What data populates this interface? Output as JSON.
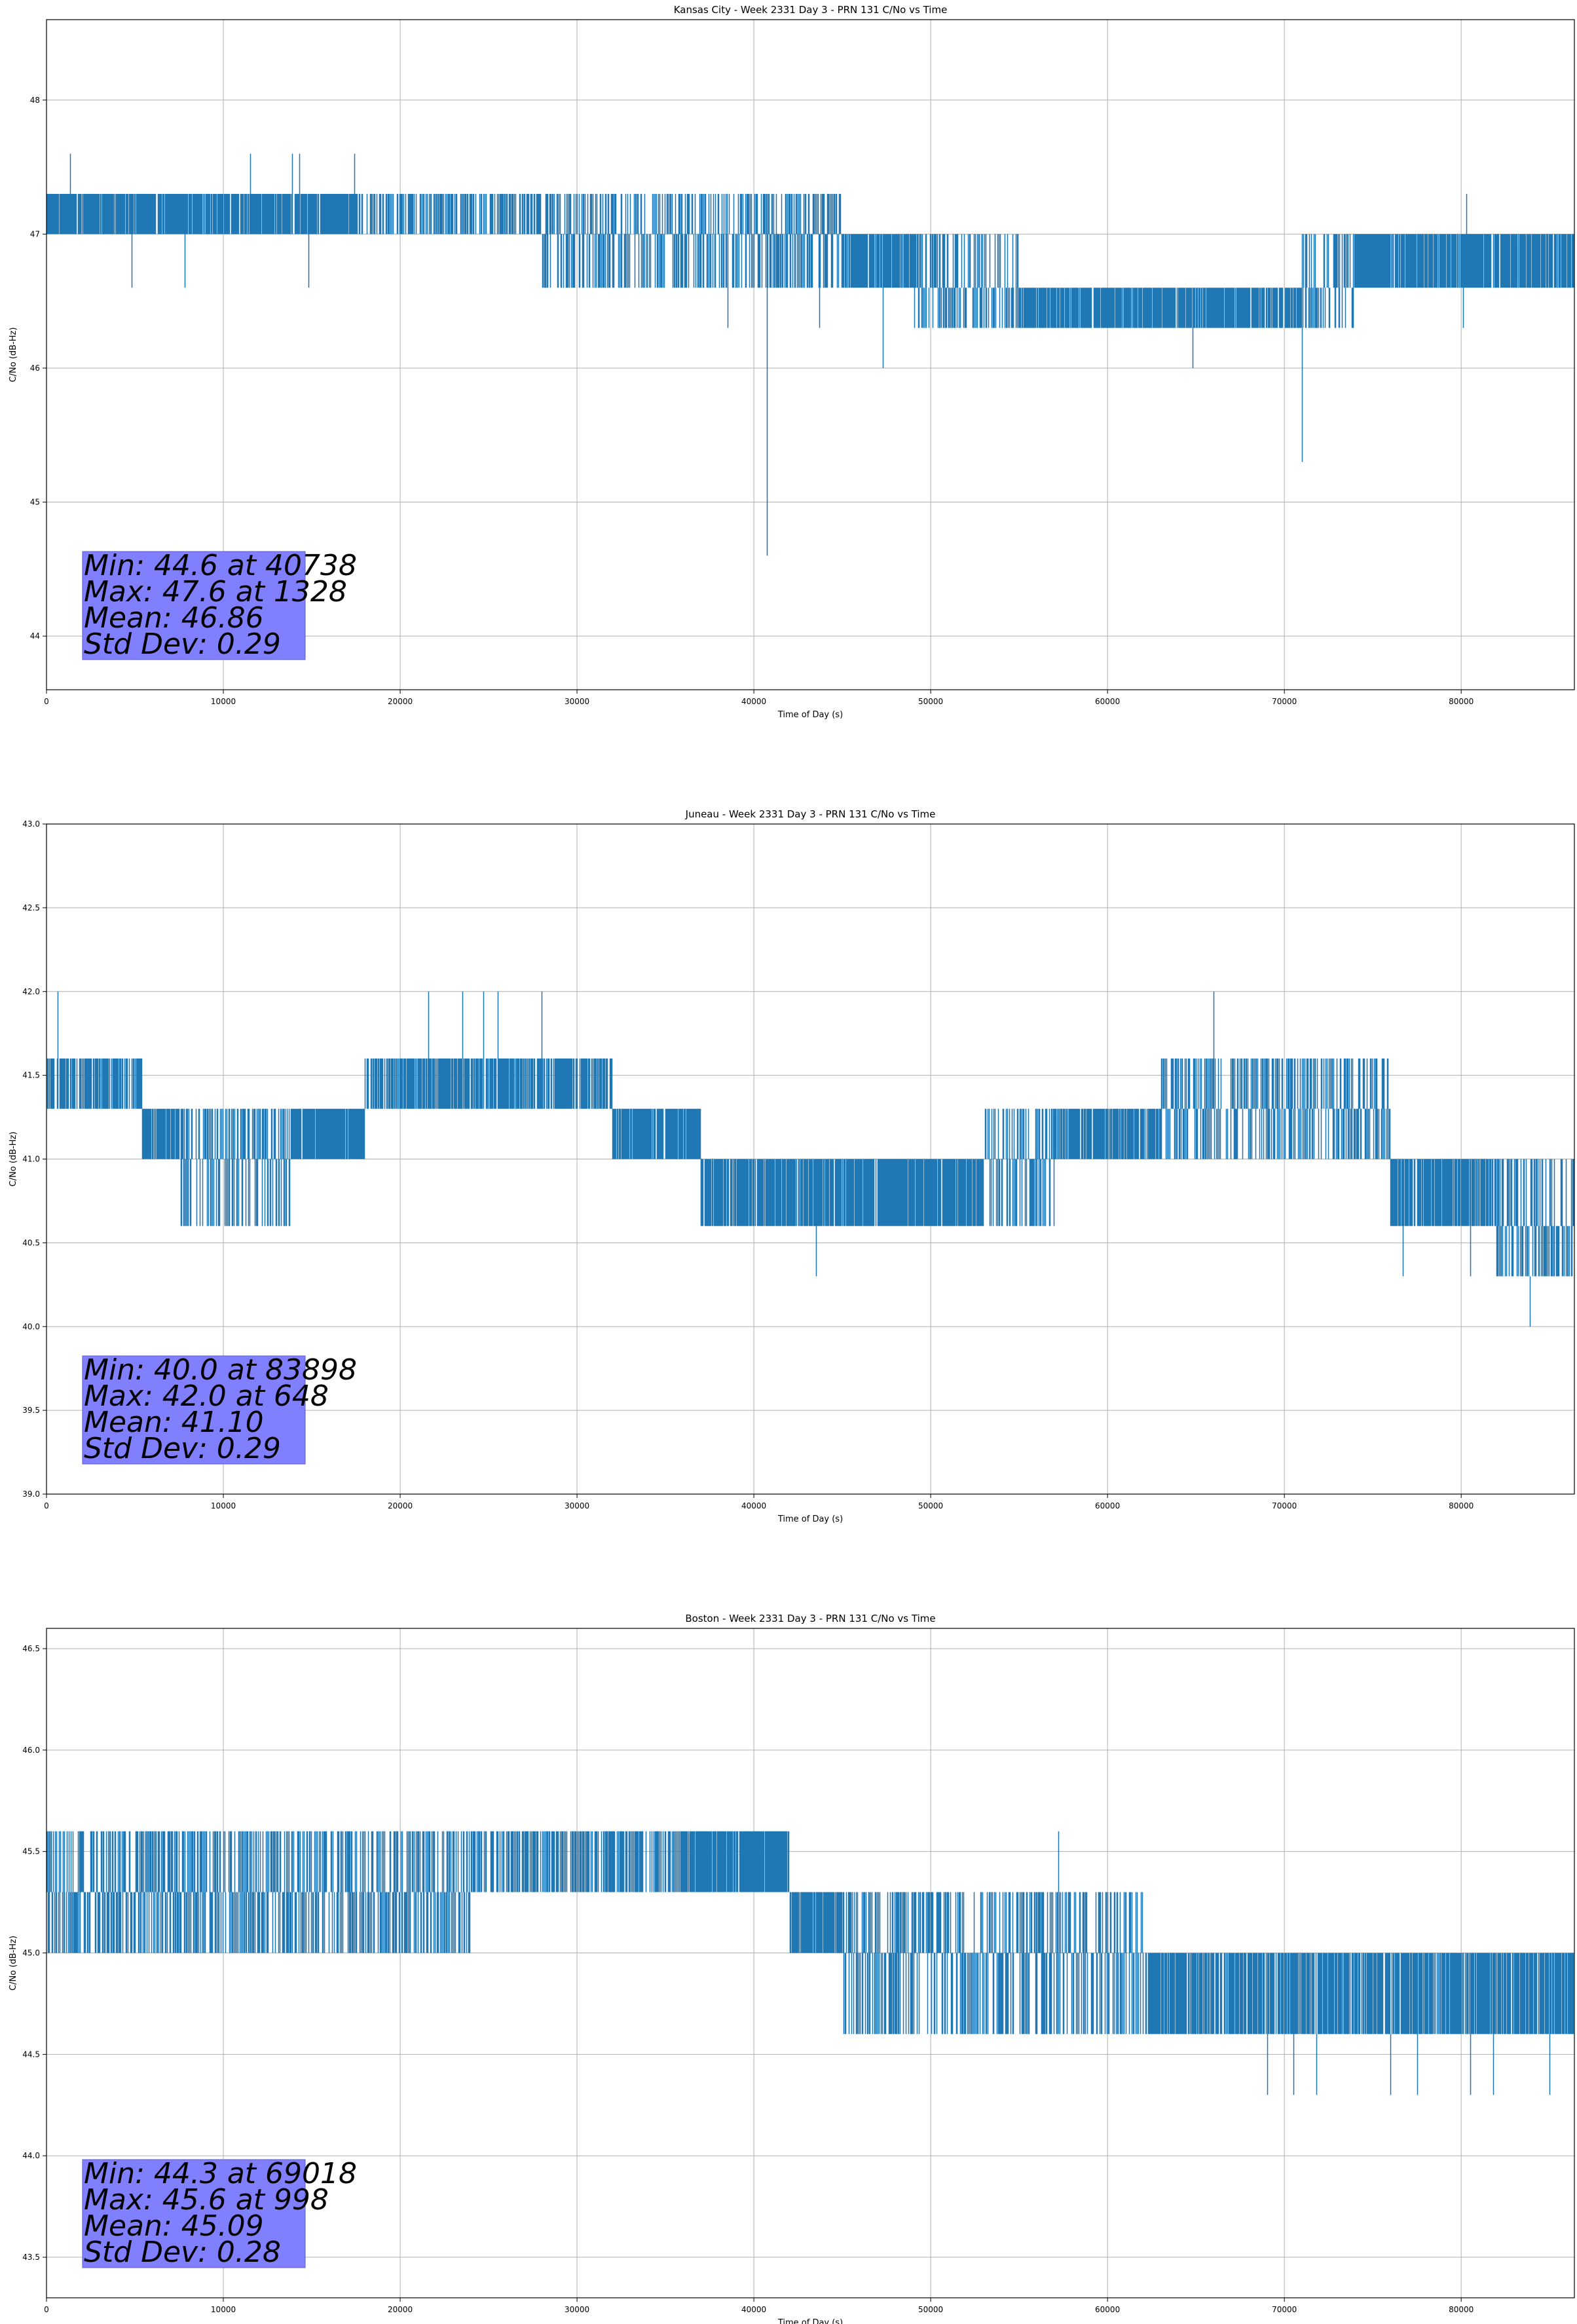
{
  "figure": {
    "background": "#ffffff"
  },
  "style": {
    "line_color": "#1f77b4",
    "grid_color": "#b0b0b0",
    "stats_box_color": "#8080ff"
  },
  "chart_data": [
    {
      "type": "line",
      "title": "Kansas City - Week 2331 Day 3 - PRN 131 C/No vs Time",
      "xlabel": "Time of Day (s)",
      "ylabel": "C/No (dB-Hz)",
      "xlim": [
        0,
        86400
      ],
      "ylim": [
        43.6,
        48.6
      ],
      "xticks": [
        0,
        10000,
        20000,
        30000,
        40000,
        50000,
        60000,
        70000,
        80000
      ],
      "yticks": [
        44,
        45,
        46,
        47,
        48
      ],
      "ytick_labels": [
        "44",
        "45",
        "46",
        "47",
        "48"
      ],
      "grid": true,
      "series": [
        {
          "color": "#1f77b4",
          "segments": [
            {
              "x0": 0,
              "x1": 17500,
              "bands": [
                47.0,
                47.3
              ],
              "density": 0.92
            },
            {
              "x0": 17500,
              "x1": 28000,
              "bands": [
                47.0,
                47.3
              ],
              "density": 0.55
            },
            {
              "x0": 28000,
              "x1": 40000,
              "bands": [
                46.6,
                47.0,
                47.3
              ],
              "density": 0.45
            },
            {
              "x0": 40000,
              "x1": 45000,
              "bands": [
                46.6,
                47.0,
                47.3
              ],
              "density": 0.7
            },
            {
              "x0": 45000,
              "x1": 49000,
              "bands": [
                46.6,
                47.0
              ],
              "density": 0.85
            },
            {
              "x0": 49000,
              "x1": 55000,
              "bands": [
                46.3,
                46.6,
                47.0
              ],
              "density": 0.55
            },
            {
              "x0": 55000,
              "x1": 71000,
              "bands": [
                46.3,
                46.6
              ],
              "density": 0.85
            },
            {
              "x0": 71000,
              "x1": 74000,
              "bands": [
                46.3,
                46.6,
                47.0
              ],
              "density": 0.5
            },
            {
              "x0": 74000,
              "x1": 86400,
              "bands": [
                46.6,
                47.0
              ],
              "density": 0.85
            }
          ],
          "spikes": [
            [
              1328,
              47.6
            ],
            [
              11500,
              47.6
            ],
            [
              13900,
              47.6
            ],
            [
              14300,
              47.6
            ],
            [
              17400,
              47.6
            ],
            [
              40738,
              44.6
            ],
            [
              47300,
              46.0
            ],
            [
              64800,
              46.0
            ],
            [
              71000,
              45.3
            ],
            [
              80300,
              47.3
            ],
            [
              4800,
              46.6
            ],
            [
              7800,
              46.6
            ],
            [
              14800,
              46.6
            ],
            [
              38500,
              46.3
            ],
            [
              43700,
              46.3
            ],
            [
              80100,
              46.3
            ]
          ]
        }
      ]
    },
    {
      "type": "line",
      "title": "Juneau - Week 2331 Day 3 - PRN 131 C/No vs Time",
      "xlabel": "Time of Day (s)",
      "ylabel": "C/No (dB-Hz)",
      "xlim": [
        0,
        86400
      ],
      "ylim": [
        39.0,
        43.0
      ],
      "xticks": [
        0,
        10000,
        20000,
        30000,
        40000,
        50000,
        60000,
        70000,
        80000
      ],
      "yticks": [
        39.0,
        39.5,
        40.0,
        40.5,
        41.0,
        41.5,
        42.0,
        42.5,
        43.0
      ],
      "ytick_labels": [
        "39.0",
        "39.5",
        "40.0",
        "40.5",
        "41.0",
        "41.5",
        "42.0",
        "42.5",
        "43.0"
      ],
      "grid": true,
      "series": [
        {
          "color": "#1f77b4",
          "segments": [
            {
              "x0": 0,
              "x1": 5400,
              "bands": [
                41.3,
                41.6
              ],
              "density": 0.75
            },
            {
              "x0": 5400,
              "x1": 7500,
              "bands": [
                41.0,
                41.3
              ],
              "density": 0.9
            },
            {
              "x0": 7500,
              "x1": 13800,
              "bands": [
                40.6,
                41.0,
                41.3
              ],
              "density": 0.55
            },
            {
              "x0": 13800,
              "x1": 18000,
              "bands": [
                41.0,
                41.3
              ],
              "density": 0.95
            },
            {
              "x0": 18000,
              "x1": 32000,
              "bands": [
                41.3,
                41.6
              ],
              "density": 0.75
            },
            {
              "x0": 32000,
              "x1": 37000,
              "bands": [
                41.0,
                41.3
              ],
              "density": 0.9
            },
            {
              "x0": 37000,
              "x1": 53000,
              "bands": [
                40.6,
                41.0
              ],
              "density": 0.88
            },
            {
              "x0": 53000,
              "x1": 57000,
              "bands": [
                40.6,
                41.0,
                41.3
              ],
              "density": 0.5
            },
            {
              "x0": 57000,
              "x1": 63000,
              "bands": [
                41.0,
                41.3
              ],
              "density": 0.85
            },
            {
              "x0": 63000,
              "x1": 76000,
              "bands": [
                41.0,
                41.3,
                41.6
              ],
              "density": 0.6
            },
            {
              "x0": 76000,
              "x1": 82000,
              "bands": [
                40.6,
                41.0
              ],
              "density": 0.8
            },
            {
              "x0": 82000,
              "x1": 86400,
              "bands": [
                40.3,
                40.6,
                41.0
              ],
              "density": 0.6
            }
          ],
          "spikes": [
            [
              648,
              42.0
            ],
            [
              21600,
              42.0
            ],
            [
              23500,
              42.0
            ],
            [
              24700,
              42.0
            ],
            [
              25500,
              42.0
            ],
            [
              28000,
              42.0
            ],
            [
              66000,
              42.0
            ],
            [
              43500,
              40.3
            ],
            [
              76700,
              40.3
            ],
            [
              80500,
              40.3
            ],
            [
              83898,
              40.0
            ]
          ]
        }
      ]
    },
    {
      "type": "line",
      "title": "Boston - Week 2331 Day 3 - PRN 131 C/No vs Time",
      "xlabel": "Time of Day (s)",
      "ylabel": "C/No (dB-Hz)",
      "xlim": [
        0,
        86400
      ],
      "ylim": [
        43.3,
        46.6
      ],
      "xticks": [
        0,
        10000,
        20000,
        30000,
        40000,
        50000,
        60000,
        70000,
        80000
      ],
      "yticks": [
        43.5,
        44.0,
        44.5,
        45.0,
        45.5,
        46.0,
        46.5
      ],
      "ytick_labels": [
        "43.5",
        "44.0",
        "44.5",
        "45.0",
        "45.5",
        "46.0",
        "46.5"
      ],
      "grid": true,
      "series": [
        {
          "color": "#1f77b4",
          "segments": [
            {
              "x0": 0,
              "x1": 9000,
              "bands": [
                45.0,
                45.3,
                45.6
              ],
              "density": 0.8
            },
            {
              "x0": 9000,
              "x1": 24000,
              "bands": [
                45.0,
                45.3,
                45.6
              ],
              "density": 0.6
            },
            {
              "x0": 24000,
              "x1": 36000,
              "bands": [
                45.3,
                45.6
              ],
              "density": 0.6
            },
            {
              "x0": 36000,
              "x1": 42000,
              "bands": [
                45.3,
                45.6
              ],
              "density": 0.9
            },
            {
              "x0": 42000,
              "x1": 45000,
              "bands": [
                45.0,
                45.3
              ],
              "density": 0.9
            },
            {
              "x0": 45000,
              "x1": 62000,
              "bands": [
                44.6,
                45.0,
                45.3
              ],
              "density": 0.55
            },
            {
              "x0": 62000,
              "x1": 86400,
              "bands": [
                44.6,
                45.0
              ],
              "density": 0.8
            }
          ],
          "spikes": [
            [
              998,
              45.6
            ],
            [
              57200,
              45.6
            ],
            [
              69018,
              44.3
            ],
            [
              70500,
              44.3
            ],
            [
              71800,
              44.3
            ],
            [
              76000,
              44.3
            ],
            [
              77500,
              44.3
            ],
            [
              80500,
              44.3
            ],
            [
              81800,
              44.3
            ],
            [
              85000,
              44.3
            ]
          ]
        }
      ]
    }
  ],
  "stats_boxes": [
    [
      "Min: 44.6 at 40738",
      "Max: 47.6 at 1328",
      "Mean: 46.86",
      "Std Dev: 0.29"
    ],
    [
      "Min: 40.0 at 83898",
      "Max: 42.0 at 648",
      "Mean: 41.10",
      "Std Dev: 0.29"
    ],
    [
      "Min: 44.3 at 69018",
      "Max: 45.6 at 998",
      "Mean: 45.09",
      "Std Dev: 0.28"
    ]
  ]
}
